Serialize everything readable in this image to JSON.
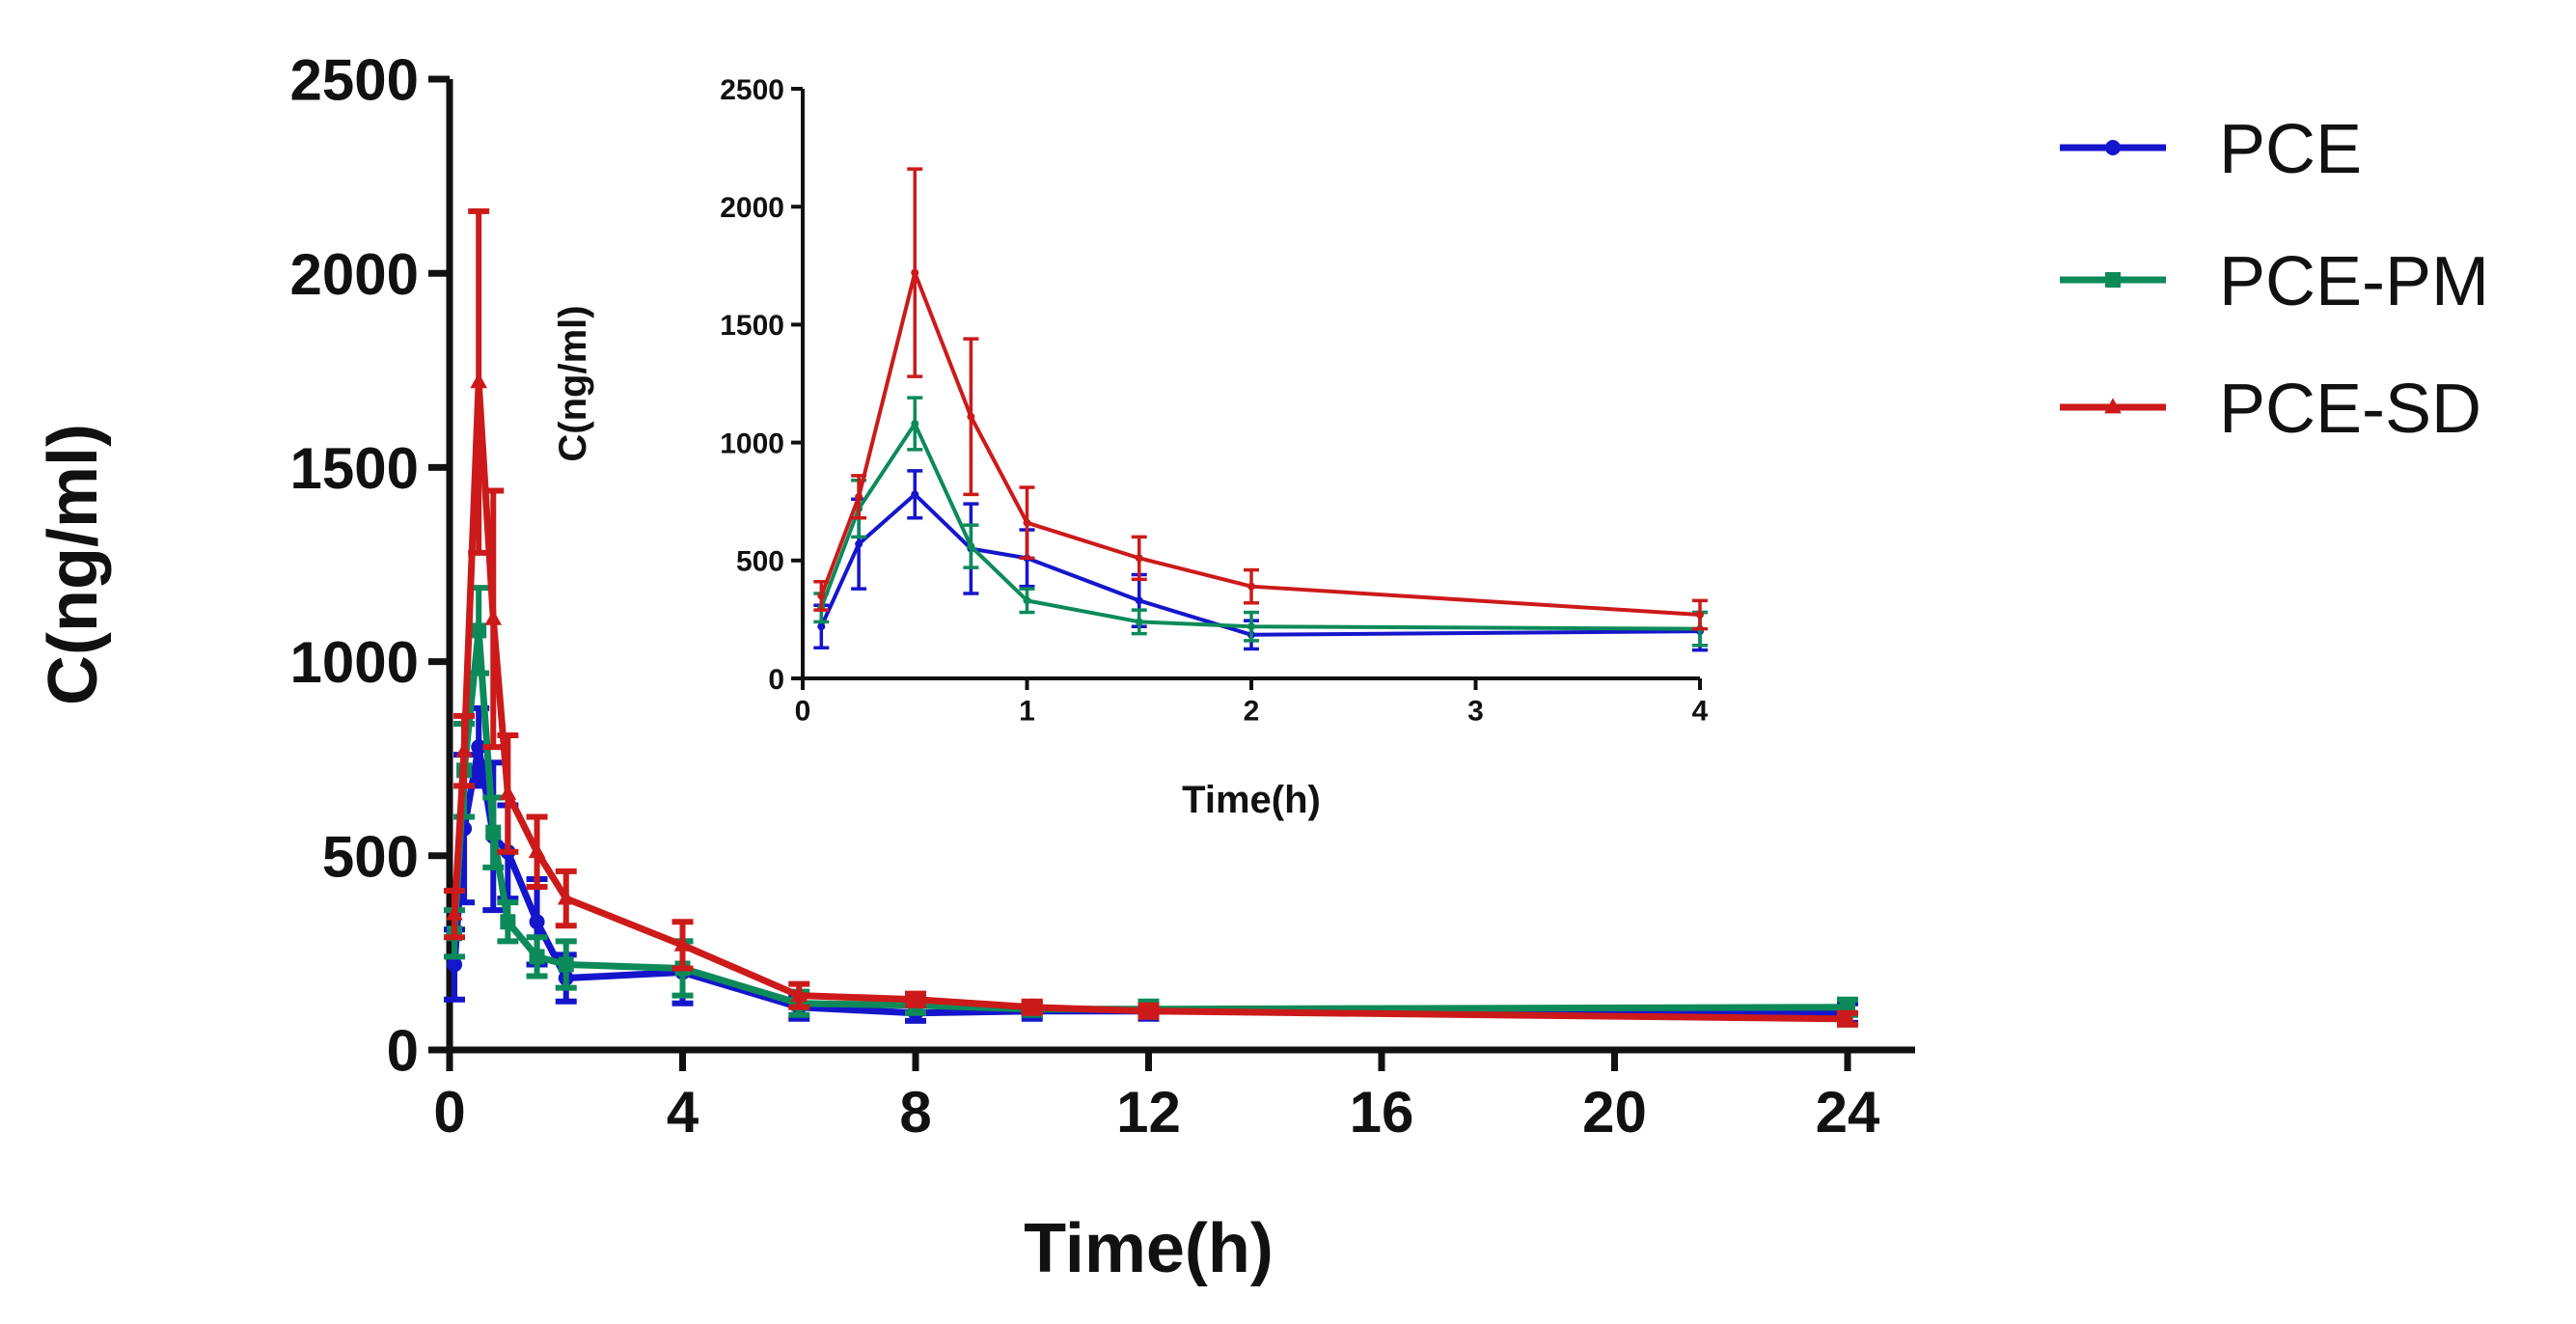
{
  "chart_data": [
    {
      "id": "main",
      "type": "line",
      "title": "",
      "xlabel": "Time(h)",
      "ylabel": "C(ng/ml)",
      "xlim": [
        0,
        24
      ],
      "ylim": [
        0,
        2500
      ],
      "xticks": [
        0,
        4,
        8,
        12,
        16,
        20,
        24
      ],
      "yticks": [
        0,
        500,
        1000,
        1500,
        2000,
        2500
      ],
      "grid": false,
      "legend": "right",
      "x": [
        0.083,
        0.25,
        0.5,
        0.75,
        1,
        1.5,
        2,
        4,
        6,
        8,
        10,
        12,
        24
      ],
      "series": [
        {
          "name": "PCE",
          "color": "#1515cc",
          "marker": "circle",
          "values": [
            220,
            570,
            780,
            550,
            510,
            330,
            185,
            200,
            110,
            95,
            100,
            100,
            95
          ],
          "errors": [
            90,
            190,
            100,
            190,
            120,
            110,
            60,
            80,
            30,
            20,
            20,
            20,
            25
          ]
        },
        {
          "name": "PCE-PM",
          "color": "#0d8a5a",
          "marker": "square",
          "values": [
            300,
            720,
            1080,
            560,
            330,
            240,
            220,
            210,
            120,
            115,
            105,
            105,
            110
          ],
          "errors": [
            60,
            120,
            110,
            90,
            50,
            50,
            60,
            70,
            30,
            20,
            15,
            20,
            20
          ]
        },
        {
          "name": "PCE-SD",
          "color": "#cc1a1a",
          "marker": "triangle",
          "values": [
            350,
            770,
            1720,
            1110,
            660,
            510,
            390,
            270,
            140,
            130,
            110,
            100,
            80
          ],
          "errors": [
            60,
            90,
            440,
            330,
            150,
            90,
            70,
            60,
            30,
            15,
            15,
            15,
            15
          ]
        }
      ]
    },
    {
      "id": "inset",
      "type": "line",
      "title": "",
      "xlabel": "Time(h)",
      "ylabel": "C(ng/ml)",
      "xlim": [
        0,
        4
      ],
      "ylim": [
        0,
        2500
      ],
      "xticks": [
        0,
        1,
        2,
        3,
        4
      ],
      "yticks": [
        0,
        500,
        1000,
        1500,
        2000,
        2500
      ],
      "grid": false,
      "legend": "none",
      "x": [
        0.083,
        0.25,
        0.5,
        0.75,
        1,
        1.5,
        2,
        4
      ],
      "series": [
        {
          "name": "PCE",
          "color": "#1515cc",
          "values": [
            220,
            570,
            780,
            550,
            510,
            330,
            185,
            200
          ],
          "errors": [
            90,
            190,
            100,
            190,
            120,
            110,
            60,
            80
          ]
        },
        {
          "name": "PCE-PM",
          "color": "#0d8a5a",
          "values": [
            300,
            720,
            1080,
            560,
            330,
            240,
            220,
            210
          ],
          "errors": [
            60,
            120,
            110,
            90,
            50,
            50,
            60,
            70
          ]
        },
        {
          "name": "PCE-SD",
          "color": "#cc1a1a",
          "values": [
            350,
            770,
            1720,
            1110,
            660,
            510,
            390,
            270
          ],
          "errors": [
            60,
            90,
            440,
            330,
            150,
            90,
            70,
            60
          ]
        }
      ]
    }
  ]
}
